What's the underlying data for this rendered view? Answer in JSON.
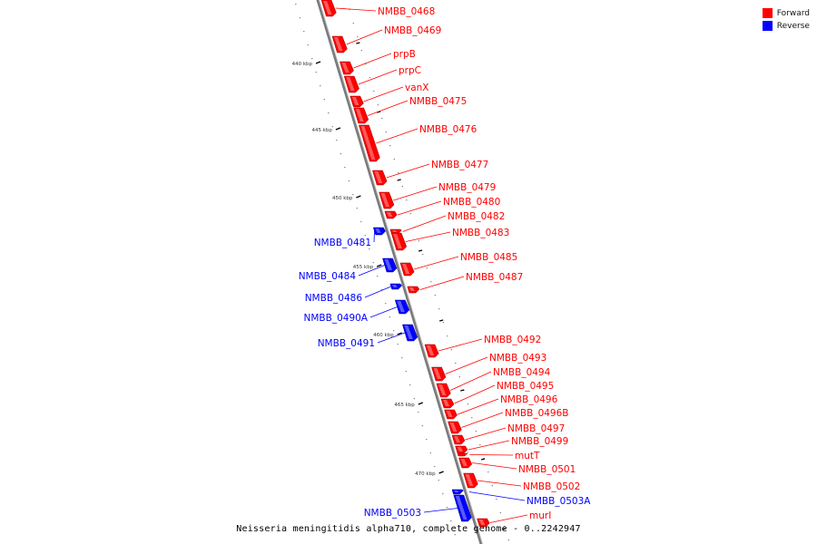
{
  "colors": {
    "forward": "#ff0000",
    "reverse": "#0000ff",
    "backbone": "#888888"
  },
  "legend": [
    {
      "label": "Forward",
      "color": "#ff0000"
    },
    {
      "label": "Reverse",
      "color": "#0000ff"
    }
  ],
  "caption": "Neisseria meningitidis alpha710, complete genome - 0..2242947",
  "ticks": [
    "440 kbp",
    "445 kbp",
    "450 kbp",
    "455 kbp",
    "460 kbp",
    "465 kbp",
    "470 kbp"
  ],
  "forward_genes": [
    "NMBB_0468",
    "NMBB_0469",
    "prpB",
    "prpC",
    "vanX",
    "NMBB_0475",
    "NMBB_0476",
    "NMBB_0477",
    "NMBB_0479",
    "NMBB_0480",
    "NMBB_0482",
    "NMBB_0483",
    "NMBB_0485",
    "NMBB_0487",
    "NMBB_0492",
    "NMBB_0493",
    "NMBB_0494",
    "NMBB_0495",
    "NMBB_0496",
    "NMBB_0496B",
    "NMBB_0497",
    "NMBB_0499",
    "mutT",
    "NMBB_0501",
    "NMBB_0502",
    "murI"
  ],
  "reverse_genes": [
    "NMBB_0481",
    "NMBB_0484",
    "NMBB_0486",
    "NMBB_0490A",
    "NMBB_0491",
    "NMBB_0503",
    "NMBB_0503A"
  ]
}
